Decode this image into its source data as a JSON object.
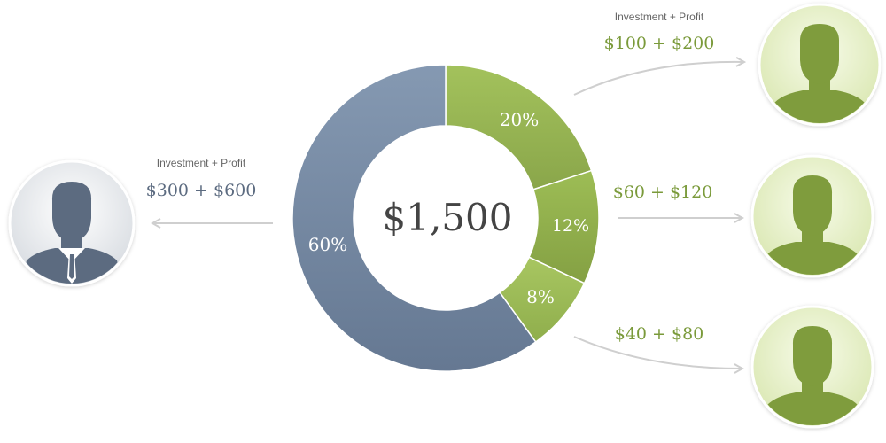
{
  "chart_data": {
    "type": "pie",
    "variant": "donut",
    "center_label": "$1,500",
    "slices": [
      {
        "label": "20%",
        "value": 20,
        "color": "#8aa64a",
        "color_light": "#a3c25c"
      },
      {
        "label": "12%",
        "value": 12,
        "color": "#84a043",
        "color_light": "#9dbd55"
      },
      {
        "label": "8%",
        "value": 8,
        "color": "#8fae4c",
        "color_light": "#a8c661"
      },
      {
        "label": "60%",
        "value": 60,
        "color": "#657892",
        "color_light": "#8599b2"
      }
    ]
  },
  "left_investor": {
    "caption": "Investment + Profit",
    "amount": "$300 + $600",
    "icon": "businessman-icon",
    "color": "#5c6b80"
  },
  "right_investors": [
    {
      "caption": "Investment + Profit",
      "amount": "$100 + $200",
      "icon": "person-icon"
    },
    {
      "caption": "",
      "amount": "$60 + $120",
      "icon": "person-icon"
    },
    {
      "caption": "",
      "amount": "$40 + $80",
      "icon": "person-icon"
    }
  ],
  "colors": {
    "green_text": "#7a9a3a",
    "blue_text": "#5c6b80",
    "arrow": "#cfcfcf",
    "center_text": "#444444"
  }
}
